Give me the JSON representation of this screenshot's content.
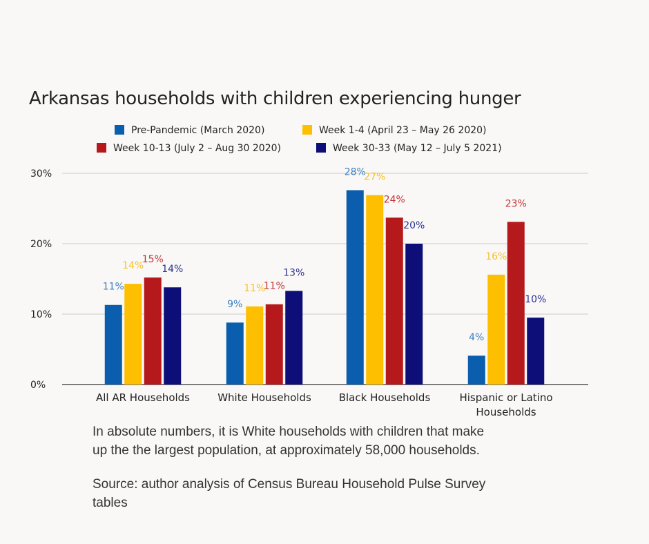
{
  "chart_data": {
    "type": "bar",
    "title": "Arkansas households with children experiencing hunger",
    "categories": [
      [
        "All AR Households"
      ],
      [
        "White Households"
      ],
      [
        "Black Households"
      ],
      [
        "Hispanic or Latino",
        "Households"
      ]
    ],
    "series": [
      {
        "name": "Pre-Pandemic (March 2020)",
        "color": "#0b5ead",
        "values": [
          11.3,
          8.8,
          27.6,
          4.1
        ],
        "labels": [
          "11%",
          "9%",
          "28%",
          "4%"
        ]
      },
      {
        "name": "Week 1-4 (April 23 – May 26 2020)",
        "color": "#fdbf00",
        "values": [
          14.3,
          11.1,
          26.9,
          15.6
        ],
        "labels": [
          "14%",
          "11%",
          "27%",
          "16%"
        ]
      },
      {
        "name": "Week 10-13 (July 2 – Aug 30 2020)",
        "color": "#b5191c",
        "values": [
          15.2,
          11.4,
          23.7,
          23.1
        ],
        "labels": [
          "15%",
          "11%",
          "24%",
          "23%"
        ]
      },
      {
        "name": "Week 30-33 (May 12 – July 5 2021)",
        "color": "#0e0e78",
        "values": [
          13.8,
          13.3,
          20.0,
          9.5
        ],
        "labels": [
          "14%",
          "13%",
          "20%",
          "10%"
        ]
      }
    ],
    "label_colors": [
      "#3f7fc0",
      "#f8bf29",
      "#c4353a",
      "#2c3190"
    ],
    "yticks": [
      "0%",
      "10%",
      "20%",
      "30%"
    ],
    "ylim": [
      0,
      30
    ],
    "grid": true,
    "legend": "top",
    "xlabel": "",
    "ylabel": ""
  },
  "caption": {
    "line1": "In absolute numbers, it is White households with children that make",
    "line2": "up the the largest population, at approximately 58,000 households.",
    "source1": "Source: author analysis of Census Bureau Household Pulse Survey",
    "source2": "tables"
  }
}
